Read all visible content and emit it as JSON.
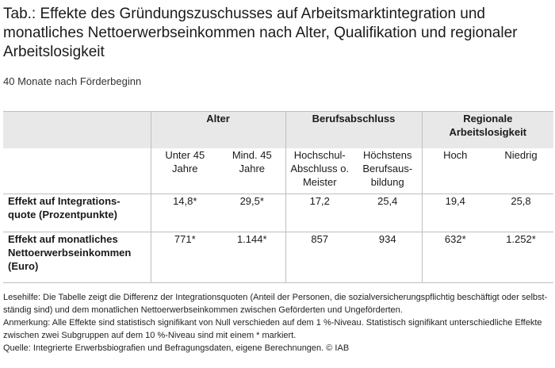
{
  "title": "Tab.: Effekte des Gründungszuschusses auf Arbeitsmarktintegration und monatliches Nettoerwerbseinkommen nach Alter, Qualifikation und regionaler Arbeitslosigkeit",
  "subtitle": "40 Monate nach Förderbeginn",
  "table": {
    "groups": [
      "Alter",
      "Berufsabschluss",
      "Regionale Arbeitslosigkeit"
    ],
    "subheaders": [
      "Unter 45 Jahre",
      "Mind. 45 Jahre",
      "Hochschul-Abschluss o. Meister",
      "Höchstens Berufsaus-bildung",
      "Hoch",
      "Niedrig"
    ],
    "rows": [
      {
        "label": "Effekt auf Integrations-quote (Prozentpunkte)",
        "values": [
          "14,8*",
          "29,5*",
          "17,2",
          "25,4",
          "19,4",
          "25,8"
        ]
      },
      {
        "label": "Effekt auf monatliches Nettoerwerbseinkommen (Euro)",
        "values": [
          "771*",
          "1.144*",
          "857",
          "934",
          "632*",
          "1.252*"
        ]
      }
    ]
  },
  "notes": {
    "lesehilfe": "Lesehilfe: Die Tabelle zeigt die Differenz der Integrationsquoten (Anteil der Personen, die sozialversicherungspflichtig beschäftigt oder selbst-ständig sind) und dem monatlichen Nettoerwerbseinkommen zwischen Geförderten und Ungeförderten.",
    "anmerkung": "Anmerkung: Alle Effekte sind statistisch signifikant von Null verschieden auf dem 1 %-Niveau. Statistisch signifikant unterschiedliche Effekte zwischen zwei Subgruppen auf dem 10 %-Niveau sind mit einem * markiert.",
    "quelle": "Quelle: Integrierte Erwerbsbiografien und Befragungsdaten, eigene Berechnungen. © IAB"
  }
}
